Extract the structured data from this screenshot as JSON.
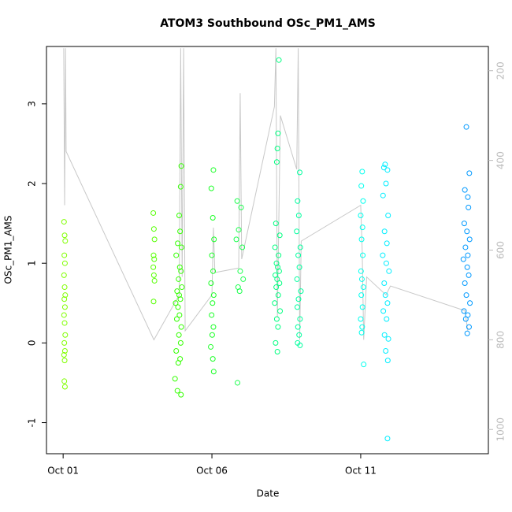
{
  "chart_data": {
    "type": "scatter",
    "title": "ATOM3 Southbound OSc_PM1_AMS",
    "xlabel": "Date",
    "ylabel": "OSc_PM1_AMS",
    "xlim": [
      -0.56,
      14.29
    ],
    "xticks": [
      {
        "value": 0,
        "label": "Oct 01"
      },
      {
        "value": 5,
        "label": "Oct 06"
      },
      {
        "value": 10,
        "label": "Oct 11"
      }
    ],
    "ylim": [
      -1.39,
      3.72
    ],
    "yticks": [
      -1,
      0,
      1,
      2,
      3
    ],
    "y2lim": [
      1054,
      146
    ],
    "y2ticks": [
      200,
      400,
      600,
      800,
      1000
    ],
    "series": [
      {
        "color": "#80ff00",
        "x": [
          0.03,
          0.05,
          0.07,
          0.04,
          0.06,
          0.03,
          0.05,
          0.07,
          0.04,
          0.06,
          0.03,
          0.05,
          0.07,
          0.04,
          0.06,
          0.03,
          0.05,
          0.04,
          0.06
        ],
        "values": [
          1.52,
          1.35,
          1.28,
          1.1,
          1.0,
          0.85,
          0.7,
          0.6,
          0.55,
          0.45,
          0.35,
          0.25,
          0.1,
          0.0,
          -0.1,
          -0.15,
          -0.22,
          -0.48,
          -0.55
        ]
      },
      {
        "color": "#55ff00",
        "x": [
          3.03,
          3.05,
          3.07,
          3.04,
          3.06,
          3.03,
          3.05,
          3.07,
          3.04
        ],
        "values": [
          1.63,
          1.43,
          1.3,
          1.1,
          1.05,
          0.95,
          0.85,
          0.78,
          0.52
        ]
      },
      {
        "color": "#33ff00",
        "x": [
          3.97,
          3.95,
          3.9,
          3.93,
          3.85,
          3.98,
          3.8,
          3.92,
          3.96,
          3.88,
          3.99,
          3.83,
          3.9,
          3.94,
          3.78,
          3.86,
          3.91,
          3.82,
          3.97,
          3.89,
          3.95,
          3.8,
          3.93,
          3.87,
          3.76,
          3.84,
          3.96
        ],
        "values": [
          2.22,
          1.96,
          1.6,
          1.4,
          1.25,
          1.2,
          1.1,
          0.95,
          0.9,
          0.8,
          0.7,
          0.65,
          0.6,
          0.55,
          0.5,
          0.45,
          0.35,
          0.3,
          0.2,
          0.1,
          0.0,
          -0.1,
          -0.2,
          -0.25,
          -0.45,
          -0.6,
          -0.65
        ]
      },
      {
        "color": "#1aff26",
        "x": [
          5.05,
          4.98,
          5.03,
          5.07,
          5.0,
          5.04,
          4.97,
          5.06,
          5.02,
          4.99,
          5.05,
          5.01,
          4.96,
          5.03,
          5.06
        ],
        "values": [
          2.17,
          1.94,
          1.57,
          1.3,
          1.1,
          0.9,
          0.75,
          0.6,
          0.5,
          0.35,
          0.2,
          0.1,
          -0.05,
          -0.2,
          -0.36
        ]
      },
      {
        "color": "#1aff4d",
        "x": [
          5.85,
          5.98,
          5.9,
          5.82,
          6.02,
          5.95,
          6.05,
          5.88,
          5.93,
          5.86
        ],
        "values": [
          1.78,
          1.7,
          1.42,
          1.3,
          1.2,
          0.9,
          0.8,
          0.7,
          0.65,
          -0.5
        ]
      },
      {
        "color": "#00ff80",
        "x": [
          7.25,
          7.22,
          7.2,
          7.18,
          7.15,
          7.28,
          7.12,
          7.24,
          7.17,
          7.21,
          7.26,
          7.13,
          7.19,
          7.27,
          7.16,
          7.23,
          7.11,
          7.29,
          7.18,
          7.22,
          7.14,
          7.2
        ],
        "values": [
          3.55,
          2.63,
          2.44,
          2.27,
          1.5,
          1.35,
          1.2,
          1.1,
          1.0,
          0.95,
          0.9,
          0.85,
          0.8,
          0.75,
          0.7,
          0.6,
          0.5,
          0.4,
          0.3,
          0.2,
          0.0,
          -0.11
        ]
      },
      {
        "color": "#00ff9f",
        "x": [
          7.95,
          7.88,
          7.92,
          7.85,
          7.97,
          7.9,
          7.94,
          7.86,
          7.99,
          7.91,
          7.87,
          7.96,
          7.89,
          7.93,
          7.88,
          7.96
        ],
        "values": [
          2.14,
          1.78,
          1.6,
          1.4,
          1.2,
          1.1,
          0.95,
          0.8,
          0.65,
          0.55,
          0.45,
          0.3,
          0.2,
          0.1,
          0.0,
          -0.03
        ]
      },
      {
        "color": "#00ffee",
        "x": [
          10.05,
          10.02,
          10.08,
          10.0,
          10.06,
          10.03,
          10.07,
          10.01,
          10.04,
          10.09,
          10.02,
          10.06,
          10.0,
          10.05,
          10.03,
          10.1
        ],
        "values": [
          2.15,
          1.97,
          1.78,
          1.6,
          1.45,
          1.3,
          1.1,
          0.9,
          0.8,
          0.7,
          0.6,
          0.45,
          0.3,
          0.2,
          0.13,
          -0.27
        ]
      },
      {
        "color": "#00eeff",
        "x": [
          10.82,
          10.78,
          10.9,
          10.85,
          10.75,
          10.92,
          10.8,
          10.88,
          10.74,
          10.86,
          10.95,
          10.79,
          10.83,
          10.9,
          10.76,
          10.87,
          10.8,
          10.93,
          10.84,
          10.91,
          10.9
        ],
        "values": [
          2.24,
          2.2,
          2.17,
          2.0,
          1.85,
          1.6,
          1.4,
          1.25,
          1.1,
          1.0,
          0.9,
          0.75,
          0.6,
          0.5,
          0.4,
          0.3,
          0.1,
          0.05,
          -0.1,
          -0.22,
          -1.2
        ]
      },
      {
        "color": "#0099ff",
        "x": [
          13.55,
          13.65,
          13.5,
          13.6,
          13.62,
          13.48,
          13.57,
          13.66,
          13.52,
          13.6,
          13.45,
          13.58,
          13.63,
          13.5,
          13.55,
          13.67,
          13.47,
          13.6,
          13.53,
          13.64,
          13.58
        ],
        "values": [
          2.71,
          2.13,
          1.92,
          1.83,
          1.7,
          1.5,
          1.4,
          1.3,
          1.2,
          1.1,
          1.05,
          0.95,
          0.85,
          0.75,
          0.6,
          0.5,
          0.4,
          0.35,
          0.3,
          0.2,
          0.12
        ]
      },
      {
        "color": "#c8c8c8",
        "axis": "y2",
        "line": true,
        "x": [
          0.02,
          0.05,
          0.08,
          0.1,
          3.05,
          3.9,
          3.95,
          4.0,
          4.05,
          4.1,
          5.0,
          5.05,
          5.1,
          5.9,
          5.95,
          6.0,
          7.1,
          7.15,
          7.2,
          7.3,
          7.85,
          7.9,
          7.95,
          8.0,
          10.0,
          10.05,
          10.1,
          10.2,
          10.85,
          11.0,
          13.5,
          13.6
        ],
        "values": [
          150,
          500,
          150,
          380,
          800,
          700,
          150,
          660,
          150,
          780,
          700,
          550,
          650,
          640,
          250,
          620,
          280,
          150,
          750,
          300,
          420,
          150,
          800,
          580,
          500,
          600,
          800,
          660,
          700,
          680,
          735,
          780
        ]
      }
    ]
  }
}
